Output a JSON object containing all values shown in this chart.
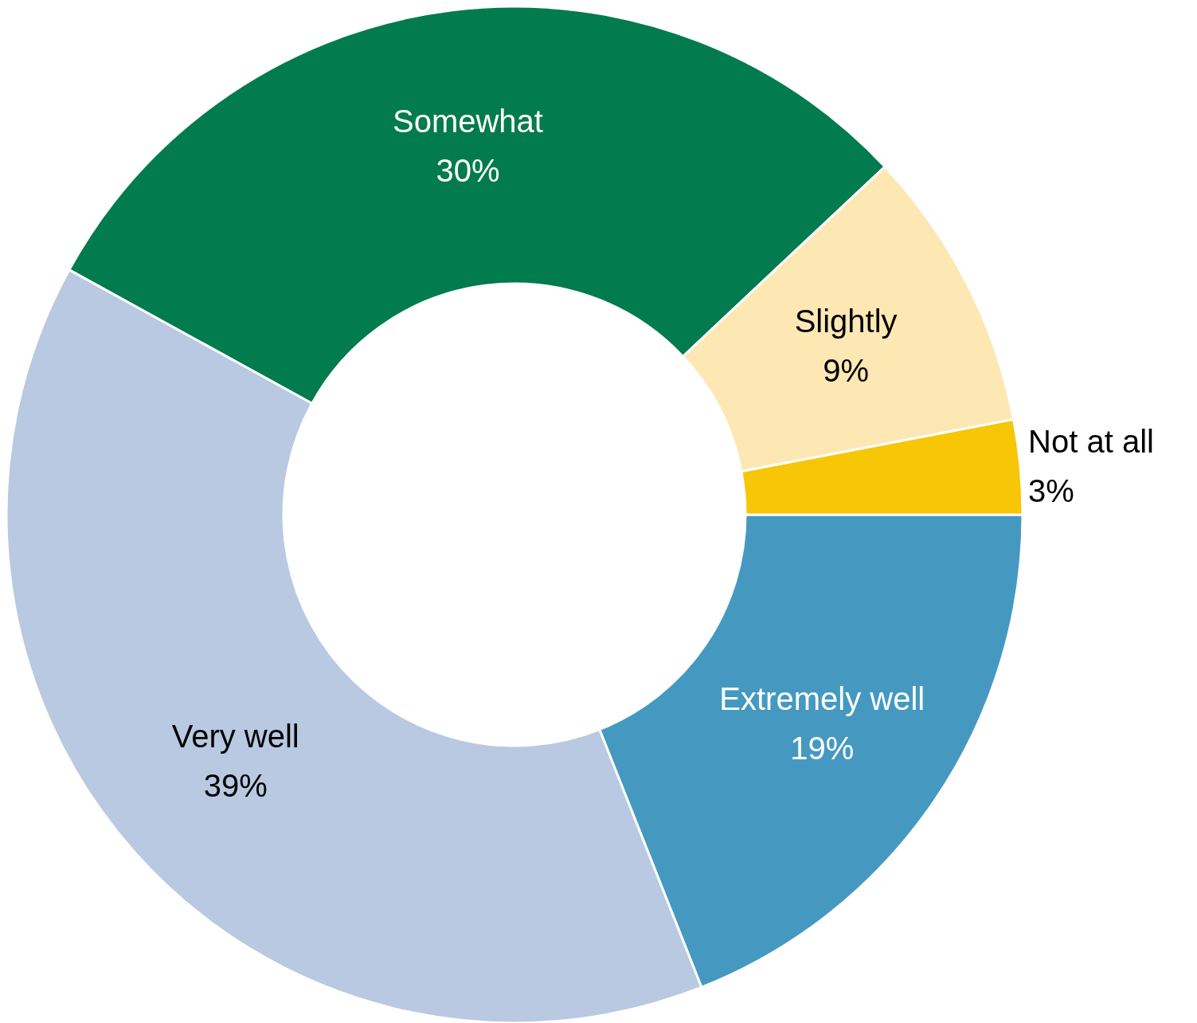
{
  "chart_data": {
    "type": "donut",
    "categories": [
      "Extremely well",
      "Very well",
      "Somewhat",
      "Slightly",
      "Not at all"
    ],
    "values": [
      19,
      39,
      30,
      9,
      3
    ],
    "colors": [
      "#4599c1",
      "#b9c9e1",
      "#027b4e",
      "#fde8b4",
      "#f6c607"
    ],
    "value_labels": [
      "19%",
      "39%",
      "30%",
      "9%",
      "3%"
    ]
  }
}
